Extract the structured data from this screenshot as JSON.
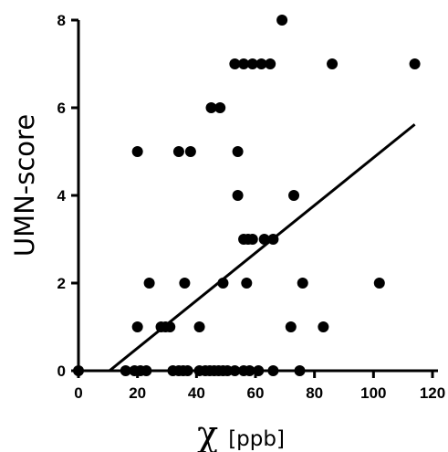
{
  "chart_data": {
    "type": "scatter",
    "xlabel_symbol": "χ",
    "xlabel_unit": "[ppb]",
    "ylabel": "UMN-score",
    "xlim": [
      0,
      120
    ],
    "ylim": [
      0,
      8
    ],
    "x_ticks": [
      0,
      20,
      40,
      60,
      80,
      100,
      120
    ],
    "y_ticks": [
      0,
      2,
      4,
      6,
      8
    ],
    "grid": false,
    "marker_color": "#000000",
    "points": [
      {
        "x": 0,
        "y": 0
      },
      {
        "x": 16,
        "y": 0
      },
      {
        "x": 19,
        "y": 0
      },
      {
        "x": 21,
        "y": 0
      },
      {
        "x": 23,
        "y": 0
      },
      {
        "x": 32,
        "y": 0
      },
      {
        "x": 34,
        "y": 0
      },
      {
        "x": 35.5,
        "y": 0
      },
      {
        "x": 37,
        "y": 0
      },
      {
        "x": 41,
        "y": 0
      },
      {
        "x": 43,
        "y": 0
      },
      {
        "x": 44.5,
        "y": 0
      },
      {
        "x": 46,
        "y": 0
      },
      {
        "x": 47.5,
        "y": 0
      },
      {
        "x": 49,
        "y": 0
      },
      {
        "x": 50.5,
        "y": 0
      },
      {
        "x": 53,
        "y": 0
      },
      {
        "x": 56,
        "y": 0
      },
      {
        "x": 58,
        "y": 0
      },
      {
        "x": 61,
        "y": 0
      },
      {
        "x": 66,
        "y": 0
      },
      {
        "x": 75,
        "y": 0
      },
      {
        "x": 20,
        "y": 1
      },
      {
        "x": 28,
        "y": 1
      },
      {
        "x": 29.5,
        "y": 1
      },
      {
        "x": 31,
        "y": 1
      },
      {
        "x": 41,
        "y": 1
      },
      {
        "x": 72,
        "y": 1
      },
      {
        "x": 83,
        "y": 1
      },
      {
        "x": 24,
        "y": 2
      },
      {
        "x": 36,
        "y": 2
      },
      {
        "x": 49,
        "y": 2
      },
      {
        "x": 57,
        "y": 2
      },
      {
        "x": 76,
        "y": 2
      },
      {
        "x": 102,
        "y": 2
      },
      {
        "x": 56,
        "y": 3
      },
      {
        "x": 57.5,
        "y": 3
      },
      {
        "x": 59,
        "y": 3
      },
      {
        "x": 63,
        "y": 3
      },
      {
        "x": 66,
        "y": 3
      },
      {
        "x": 54,
        "y": 4
      },
      {
        "x": 73,
        "y": 4
      },
      {
        "x": 20,
        "y": 5
      },
      {
        "x": 34,
        "y": 5
      },
      {
        "x": 38,
        "y": 5
      },
      {
        "x": 54,
        "y": 5
      },
      {
        "x": 45,
        "y": 6
      },
      {
        "x": 48,
        "y": 6
      },
      {
        "x": 53,
        "y": 7
      },
      {
        "x": 56,
        "y": 7
      },
      {
        "x": 59,
        "y": 7
      },
      {
        "x": 62,
        "y": 7
      },
      {
        "x": 65,
        "y": 7
      },
      {
        "x": 86,
        "y": 7
      },
      {
        "x": 114,
        "y": 7
      },
      {
        "x": 69,
        "y": 8
      }
    ],
    "trendline": {
      "x": [
        10.5,
        114
      ],
      "y": [
        0,
        5.62
      ]
    }
  }
}
